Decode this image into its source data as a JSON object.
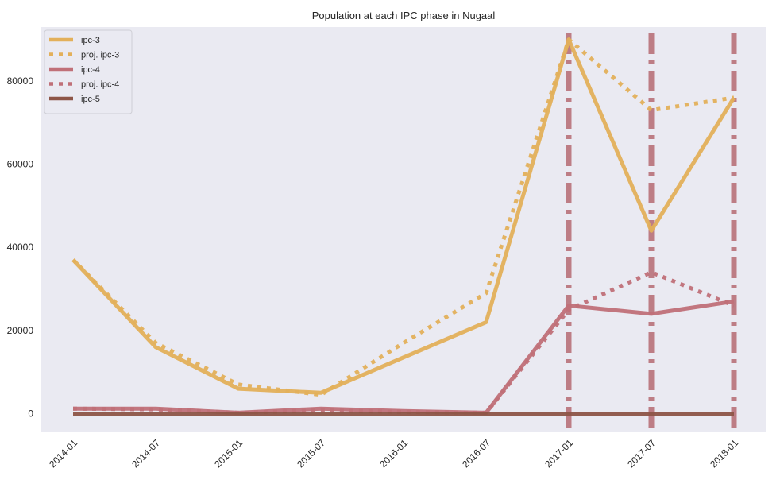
{
  "chart_data": {
    "type": "line",
    "title": "Population at each IPC phase in Nugaal",
    "xlabel": "",
    "ylabel": "",
    "x": [
      "2014-01",
      "2014-07",
      "2015-01",
      "2015-07",
      "2016-01",
      "2016-07",
      "2017-01",
      "2017-07",
      "2018-01"
    ],
    "ylim": [
      -4500,
      93000
    ],
    "yticks": [
      0,
      20000,
      40000,
      60000,
      80000
    ],
    "grid": false,
    "legend_position": "top-left",
    "series": [
      {
        "name": "ipc-3",
        "style": "solid",
        "color": "#e3b05a",
        "values": [
          37000,
          16000,
          6000,
          5000,
          13500,
          22000,
          90000,
          44000,
          76000
        ]
      },
      {
        "name": "proj. ipc-3",
        "style": "dotted",
        "color": "#e3b05a",
        "values": [
          37000,
          17000,
          7000,
          4500,
          17000,
          29000,
          90000,
          73000,
          76000
        ]
      },
      {
        "name": "ipc-4",
        "style": "solid",
        "color": "#c07078",
        "values": [
          1200,
          1200,
          200,
          1200,
          600,
          200,
          26000,
          24000,
          27000
        ]
      },
      {
        "name": "proj. ipc-4",
        "style": "dotted",
        "color": "#c07078",
        "values": [
          1200,
          1000,
          200,
          800,
          400,
          200,
          25000,
          34000,
          26000
        ]
      },
      {
        "name": "ipc-5",
        "style": "solid",
        "color": "#8d5547",
        "values": [
          0,
          0,
          0,
          0,
          0,
          0,
          0,
          0,
          0
        ]
      }
    ],
    "vertical_markers": {
      "x": [
        "2017-01",
        "2017-07",
        "2018-01"
      ],
      "style": "dashdot",
      "color": "#b87179"
    }
  }
}
